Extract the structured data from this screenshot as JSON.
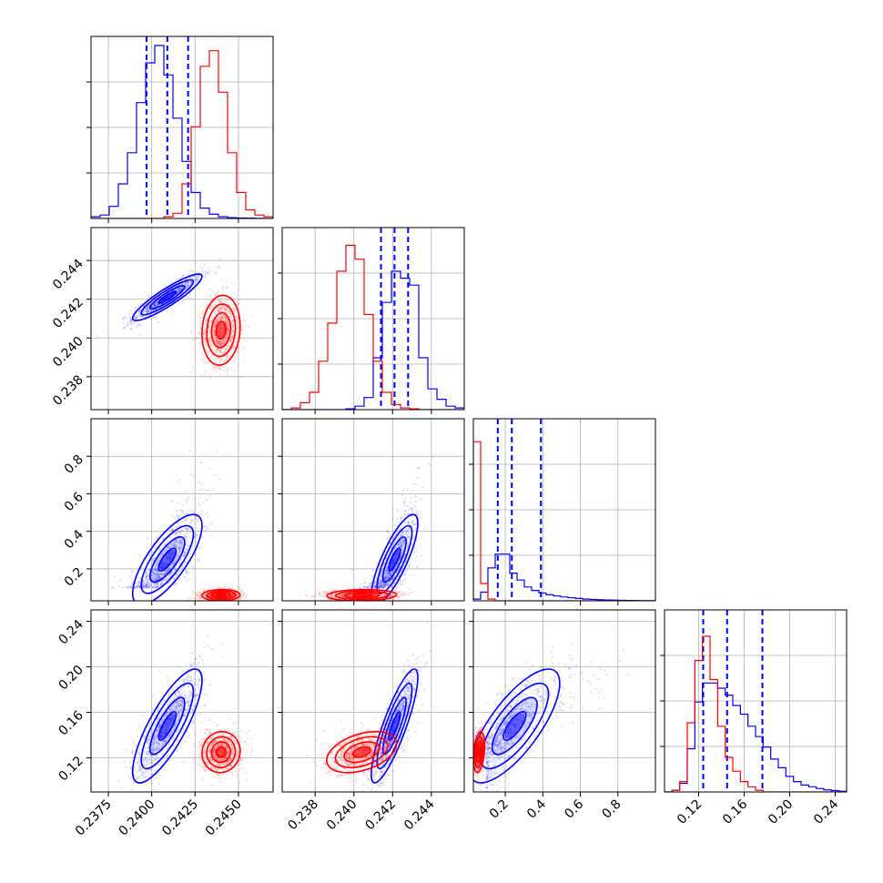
{
  "colors": {
    "blue": "#0000ff",
    "red": "#ff0000",
    "grid": "#b0b0b0",
    "frame": "#000000"
  },
  "chart_data": {
    "type": "corner",
    "grid": true,
    "n_parameters": 4,
    "parameters": [
      {
        "range": [
          0.2365,
          0.247
        ],
        "ticks": [
          "0.2375",
          "0.2400",
          "0.2425",
          "0.2450"
        ],
        "tick_values": [
          0.2375,
          0.24,
          0.2425,
          0.245
        ]
      },
      {
        "range": [
          0.2363,
          0.2457
        ],
        "ticks": [
          "0.238",
          "0.240",
          "0.242",
          "0.244"
        ],
        "tick_values": [
          0.238,
          0.24,
          0.242,
          0.244
        ]
      },
      {
        "range": [
          0.03,
          1.0
        ],
        "ticks": [
          "0.2",
          "0.4",
          "0.6",
          "0.8"
        ],
        "tick_values": [
          0.2,
          0.4,
          0.6,
          0.8
        ]
      },
      {
        "range": [
          0.09,
          0.25
        ],
        "ticks": [
          "0.12",
          "0.16",
          "0.20",
          "0.24"
        ],
        "tick_values": [
          0.12,
          0.16,
          0.2,
          0.24
        ]
      }
    ],
    "series": [
      {
        "color": "#0000ff",
        "quantiles": [
          [
            0.2397,
            0.2409,
            0.2421
          ],
          [
            0.2414,
            0.2421,
            0.2428
          ],
          [
            0.16,
            0.235,
            0.39
          ],
          [
            0.124,
            0.145,
            0.176
          ]
        ],
        "means": [
          0.2409,
          0.2421,
          0.25,
          0.148
        ],
        "sds": [
          0.001,
          0.0006,
          0.12,
          0.025
        ],
        "correlations": {
          "1-0": 0.9,
          "2-0": 0.75,
          "2-1": 0.8,
          "3-0": 0.8,
          "3-1": 0.85,
          "3-2": 0.75
        },
        "histogram_heights": [
          [
            0.01,
            0.02,
            0.07,
            0.2,
            0.38,
            0.67,
            0.9,
            1.0,
            0.83,
            0.58,
            0.33,
            0.15,
            0.06,
            0.025,
            0.01,
            0.005,
            0.003,
            0.002,
            0.001,
            0.0
          ],
          [
            0.0,
            0.0,
            0.0,
            0.0,
            0.0,
            0.0,
            0.0,
            0.005,
            0.02,
            0.07,
            0.3,
            0.62,
            0.8,
            0.76,
            0.72,
            0.3,
            0.12,
            0.06,
            0.02,
            0.01
          ],
          [
            0.01,
            0.05,
            0.19,
            0.27,
            0.27,
            0.16,
            0.12,
            0.08,
            0.06,
            0.045,
            0.035,
            0.028,
            0.022,
            0.018,
            0.014,
            0.01,
            0.008,
            0.006,
            0.005,
            0.004,
            0.003,
            0.002,
            0.0015,
            0.001,
            0.001
          ],
          [
            0.0,
            0.01,
            0.05,
            0.25,
            0.52,
            0.63,
            0.63,
            0.6,
            0.56,
            0.5,
            0.45,
            0.38,
            0.32,
            0.26,
            0.19,
            0.14,
            0.09,
            0.06,
            0.04,
            0.03,
            0.02,
            0.012,
            0.008,
            0.004
          ]
        ]
      },
      {
        "color": "#ff0000",
        "quantiles": [],
        "means": [
          0.244,
          0.2404,
          0.06,
          0.125
        ],
        "sds": [
          0.00055,
          0.0009,
          0.015,
          0.009
        ],
        "correlations": {
          "1-0": 0.1,
          "2-0": 0.05,
          "2-1": 0.1,
          "3-0": 0.05,
          "3-1": 0.4,
          "3-2": 0.3
        },
        "histogram_heights": [
          [
            0.0,
            0.0,
            0.0,
            0.0,
            0.0,
            0.0,
            0.0,
            0.0,
            0.01,
            0.03,
            0.2,
            0.53,
            0.88,
            0.97,
            0.73,
            0.38,
            0.15,
            0.05,
            0.02,
            0.01
          ],
          [
            0.0,
            0.01,
            0.04,
            0.1,
            0.28,
            0.5,
            0.8,
            0.95,
            0.87,
            0.55,
            0.28,
            0.1,
            0.03,
            0.01,
            0.005,
            0.0,
            0.0,
            0.0,
            0.0,
            0.0
          ],
          [
            0.92,
            0.1,
            0.01,
            0.0,
            0.0,
            0.0,
            0.0,
            0.0,
            0.0,
            0.0,
            0.0,
            0.0,
            0.0,
            0.0,
            0.0,
            0.0,
            0.0,
            0.0,
            0.0,
            0.0,
            0.0,
            0.0,
            0.0,
            0.0,
            0.0
          ],
          [
            0.0,
            0.01,
            0.06,
            0.4,
            0.76,
            0.9,
            0.65,
            0.38,
            0.2,
            0.12,
            0.06,
            0.03,
            0.01,
            0.0,
            0.0,
            0.0,
            0.0,
            0.0,
            0.0,
            0.0,
            0.0,
            0.0,
            0.0,
            0.0
          ]
        ]
      }
    ],
    "contour_levels_sigma": [
      0.5,
      1.0,
      1.5,
      2.0
    ]
  }
}
